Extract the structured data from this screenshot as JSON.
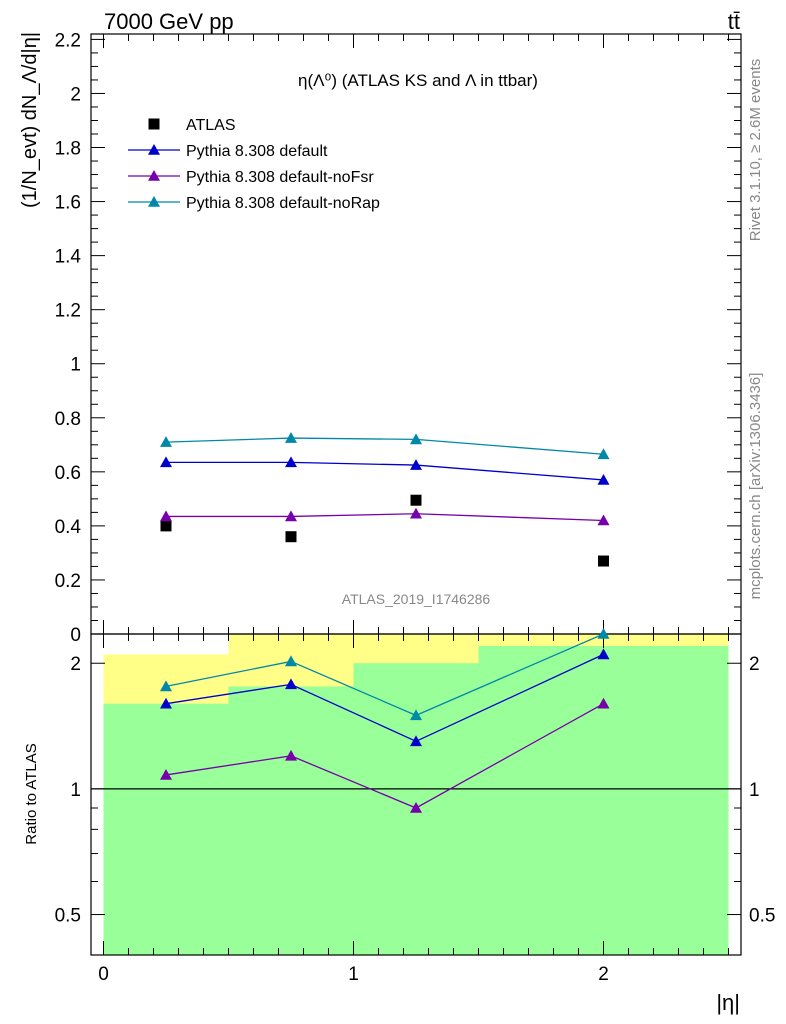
{
  "header": {
    "left": "7000 GeV pp",
    "right": "tt̄"
  },
  "side_labels": {
    "rivet": "Rivet 3.1.10, ≥ 2.6M events",
    "mcplots": "mcplots.cern.ch [arXiv:1306.3436]"
  },
  "watermark": "ATLAS_2019_I1746286",
  "colors": {
    "atlas": "#000000",
    "default": "#0000cc",
    "noFsr": "#7700aa",
    "noRap": "#0088aa",
    "band_green": "#99ff99",
    "band_yellow": "#ffff88"
  },
  "chart_data": [
    {
      "type": "scatter",
      "panel": "main",
      "title": "η(Λ⁰) (ATLAS KS and Λ in ttbar)",
      "ylabel": "(1/N_evt) dN_Λ/d|η|",
      "xlim": [
        -0.05,
        2.55
      ],
      "ylim": [
        0,
        2.22
      ],
      "yticks": [
        "0",
        "0.2",
        "0.4",
        "0.6",
        "0.8",
        "1",
        "1.2",
        "1.4",
        "1.6",
        "1.8",
        "2",
        "2.2"
      ],
      "legend_position": "top-left",
      "x": [
        0.25,
        0.75,
        1.25,
        2.0
      ],
      "series": [
        {
          "name": "ATLAS",
          "marker": "square",
          "values": [
            0.4,
            0.36,
            0.495,
            0.27
          ]
        },
        {
          "name": "Pythia 8.308 default",
          "marker": "triangle",
          "values": [
            0.635,
            0.635,
            0.625,
            0.57
          ]
        },
        {
          "name": "Pythia 8.308 default-noFsr",
          "marker": "triangle",
          "values": [
            0.435,
            0.435,
            0.445,
            0.42
          ]
        },
        {
          "name": "Pythia 8.308 default-noRap",
          "marker": "triangle",
          "values": [
            0.71,
            0.725,
            0.72,
            0.665
          ]
        }
      ]
    },
    {
      "type": "line",
      "panel": "ratio",
      "ylabel": "Ratio to ATLAS",
      "xlabel": "|η|",
      "yscale": "log",
      "ylim": [
        0.4,
        2.35
      ],
      "yticks": [
        "0.5",
        "1",
        "2"
      ],
      "xticks": [
        "0",
        "1",
        "2"
      ],
      "reference_line": 1,
      "x": [
        0.25,
        0.75,
        1.25,
        2.0
      ],
      "series": [
        {
          "name": "Pythia 8.308 default",
          "values": [
            1.6,
            1.78,
            1.3,
            2.1
          ]
        },
        {
          "name": "Pythia 8.308 default-noFsr",
          "values": [
            1.08,
            1.2,
            0.9,
            1.6
          ]
        },
        {
          "name": "Pythia 8.308 default-noRap",
          "values": [
            1.76,
            2.02,
            1.5,
            2.4
          ]
        }
      ],
      "bands": [
        {
          "x0": 0.0,
          "x1": 0.5,
          "green": [
            0.4,
            1.6
          ],
          "yellow": [
            0.38,
            2.1
          ]
        },
        {
          "x0": 0.5,
          "x1": 1.0,
          "green": [
            0.36,
            1.76
          ],
          "yellow": [
            0.36,
            2.4
          ]
        },
        {
          "x0": 1.0,
          "x1": 1.5,
          "green": [
            0.36,
            2.0
          ],
          "yellow": [
            0.36,
            2.4
          ]
        },
        {
          "x0": 1.5,
          "x1": 2.5,
          "green": [
            0.36,
            2.2
          ],
          "yellow": [
            0.36,
            2.4
          ]
        }
      ]
    }
  ]
}
